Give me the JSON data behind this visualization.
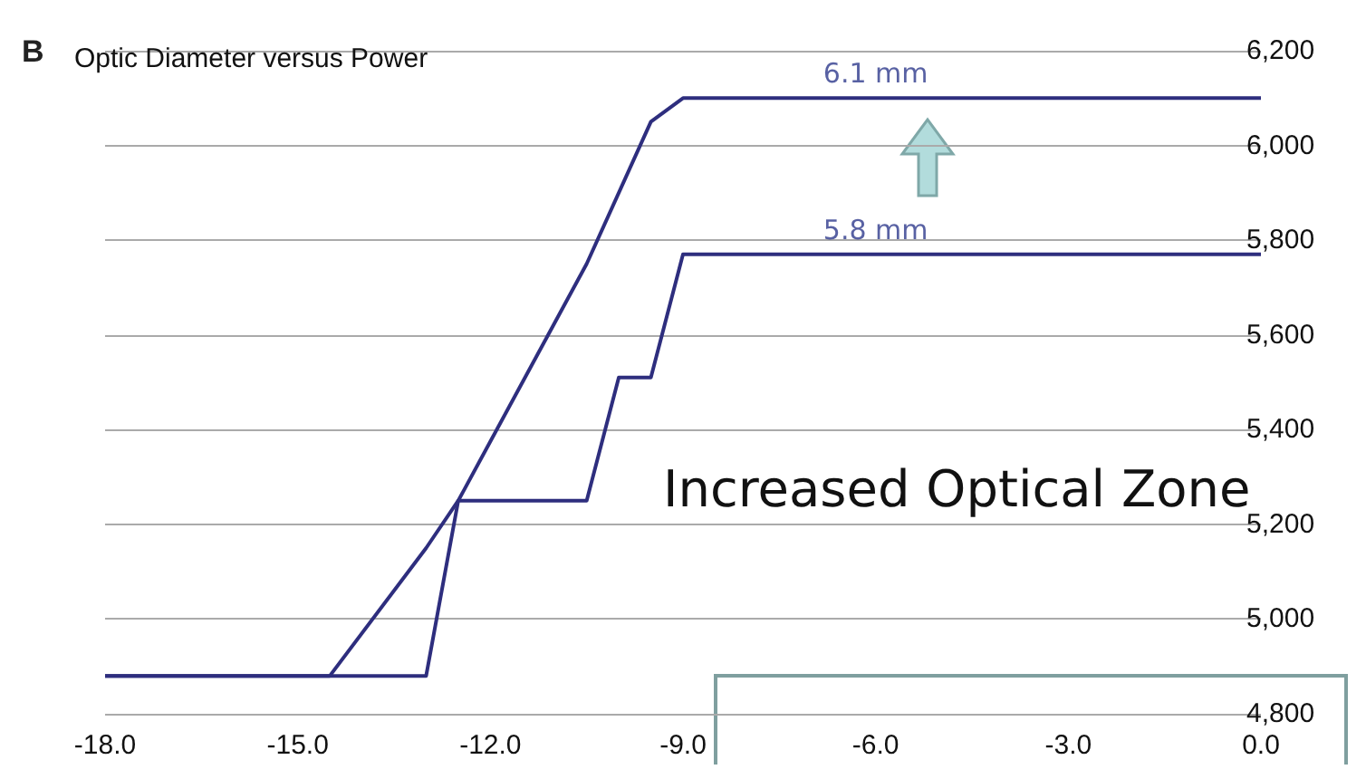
{
  "chart_data": {
    "type": "line",
    "title": "Optic Diameter versus Power",
    "xlim": [
      -18,
      0
    ],
    "ylim": [
      4800,
      6200
    ],
    "xticks": [
      {
        "value": -18,
        "label": "-18.0"
      },
      {
        "value": -15,
        "label": "-15.0"
      },
      {
        "value": -12,
        "label": "-12.0"
      },
      {
        "value": -9,
        "label": "-9.0"
      },
      {
        "value": -6,
        "label": "-6.0"
      },
      {
        "value": -3,
        "label": "-3.0"
      },
      {
        "value": 0,
        "label": "0.0"
      }
    ],
    "yticks": [
      {
        "value": 4800,
        "label": "4,800"
      },
      {
        "value": 5000,
        "label": "5,000"
      },
      {
        "value": 5200,
        "label": "5,200"
      },
      {
        "value": 5400,
        "label": "5,400"
      },
      {
        "value": 5600,
        "label": "5,600"
      },
      {
        "value": 5800,
        "label": "5,800"
      },
      {
        "value": 6000,
        "label": "6,000"
      },
      {
        "value": 6200,
        "label": "6,200"
      }
    ],
    "grid": "y",
    "marker": "none",
    "line_style": "solid",
    "series": [
      {
        "color": "#2e2e7e",
        "x": [
          -18,
          -14.5,
          -13,
          -12.5,
          -10.5,
          -9.5,
          -9,
          0
        ],
        "values": [
          4880,
          4880,
          5150,
          5250,
          5750,
          6050,
          6100,
          6100
        ]
      },
      {
        "color": "#2e2e7e",
        "x": [
          -18,
          -13,
          -12.5,
          -10.5,
          -10,
          -9.5,
          -9,
          0
        ],
        "values": [
          4880,
          4880,
          5250,
          5250,
          5510,
          5510,
          5770,
          5770
        ]
      }
    ],
    "annotations": [
      "B",
      {
        "text": "6.1 mm",
        "x": -6,
        "y": 6100
      },
      {
        "text": "5.8 mm",
        "x": -6,
        "y": 5770
      },
      "Increased Optical Zone"
    ]
  }
}
